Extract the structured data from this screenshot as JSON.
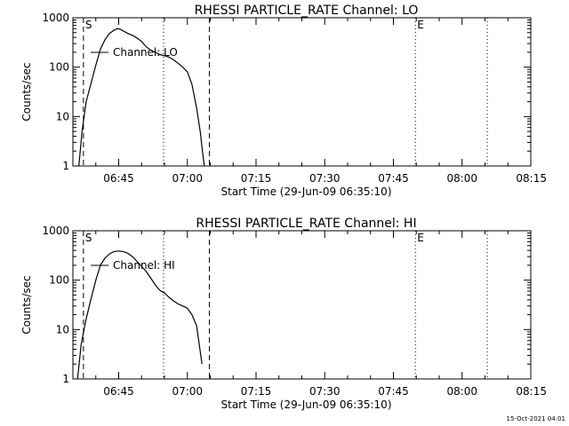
{
  "footer_timestamp": "15-Oct-2021 04:01",
  "chart_data": [
    {
      "type": "line",
      "title": "RHESSI PARTICLE_RATE Channel: LO",
      "xlabel": "Start Time (29-Jun-09 06:35:10)",
      "ylabel": "Counts/sec",
      "y_scale": "log",
      "xlim_minutes": [
        0,
        100
      ],
      "ylim": [
        1,
        1000
      ],
      "x_ticks": [
        {
          "t": 10,
          "label": "06:45"
        },
        {
          "t": 25,
          "label": "07:00"
        },
        {
          "t": 40,
          "label": "07:15"
        },
        {
          "t": 55,
          "label": "07:30"
        },
        {
          "t": 70,
          "label": "07:45"
        },
        {
          "t": 85,
          "label": "08:00"
        },
        {
          "t": 100,
          "label": "08:15"
        }
      ],
      "y_ticks": [
        {
          "v": 1,
          "label": "1"
        },
        {
          "v": 10,
          "label": "10"
        },
        {
          "v": 100,
          "label": "100"
        },
        {
          "v": 1000,
          "label": "1000"
        }
      ],
      "legend_label": "Channel: LO",
      "marker_S": "S",
      "marker_E": "E",
      "dashed_lines_t": [
        2.3,
        29.8
      ],
      "dotted_lines_t": [
        19.8,
        74.8,
        90.5
      ],
      "series": [
        {
          "x": [
            1.3,
            2.0,
            2.9,
            3.9,
            5.0,
            6.0,
            7.0,
            8.0,
            9.0,
            9.7,
            10.3,
            11.0,
            12.0,
            13.0,
            14.0,
            15.0,
            16.0,
            17.0,
            18.0,
            19.0,
            20.0,
            21.0,
            22.0,
            23.0,
            24.0,
            25.0,
            26.0,
            27.0,
            27.8,
            28.3,
            28.7
          ],
          "values": [
            1,
            5,
            20,
            45,
            110,
            230,
            360,
            480,
            560,
            600,
            590,
            540,
            480,
            440,
            390,
            330,
            260,
            220,
            200,
            180,
            170,
            160,
            140,
            120,
            100,
            80,
            45,
            15,
            5,
            2,
            1
          ]
        }
      ]
    },
    {
      "type": "line",
      "title": "RHESSI PARTICLE_RATE Channel: HI",
      "xlabel": "Start Time (29-Jun-09 06:35:10)",
      "ylabel": "Counts/sec",
      "y_scale": "log",
      "xlim_minutes": [
        0,
        100
      ],
      "ylim": [
        1,
        1000
      ],
      "x_ticks": [
        {
          "t": 10,
          "label": "06:45"
        },
        {
          "t": 25,
          "label": "07:00"
        },
        {
          "t": 40,
          "label": "07:15"
        },
        {
          "t": 55,
          "label": "07:30"
        },
        {
          "t": 70,
          "label": "07:45"
        },
        {
          "t": 85,
          "label": "08:00"
        },
        {
          "t": 100,
          "label": "08:15"
        }
      ],
      "y_ticks": [
        {
          "v": 1,
          "label": "1"
        },
        {
          "v": 10,
          "label": "10"
        },
        {
          "v": 100,
          "label": "100"
        },
        {
          "v": 1000,
          "label": "1000"
        }
      ],
      "legend_label": "Channel: HI",
      "marker_S": "S",
      "marker_E": "E",
      "dashed_lines_t": [
        2.3,
        29.8
      ],
      "dotted_lines_t": [
        19.8,
        74.8,
        90.5
      ],
      "series": [
        {
          "x": [
            1.0,
            1.8,
            2.8,
            3.9,
            5.0,
            6.0,
            7.0,
            8.0,
            9.0,
            10.0,
            11.0,
            12.0,
            13.0,
            14.0,
            15.0,
            16.0,
            17.0,
            18.0,
            19.0,
            20.0,
            21.0,
            22.0,
            23.0,
            24.0,
            25.0,
            26.0,
            27.0,
            27.6,
            28.2
          ],
          "values": [
            1,
            5,
            15,
            40,
            100,
            200,
            280,
            340,
            380,
            390,
            380,
            350,
            300,
            240,
            190,
            150,
            110,
            80,
            62,
            55,
            45,
            38,
            33,
            30,
            27,
            20,
            12,
            5,
            2
          ]
        }
      ]
    }
  ]
}
